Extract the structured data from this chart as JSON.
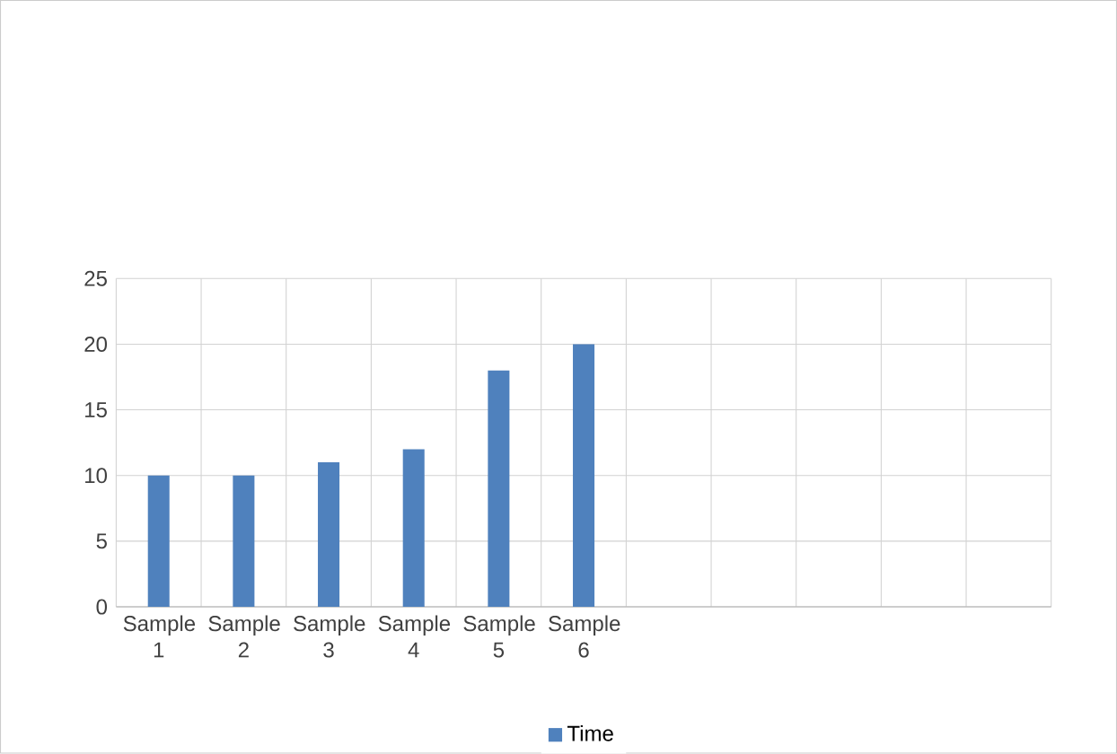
{
  "chart_data": {
    "type": "bar",
    "categories": [
      "Sample 1",
      "Sample 2",
      "Sample 3",
      "Sample 4",
      "Sample 5",
      "Sample 6",
      null,
      null,
      null,
      null,
      null
    ],
    "series": [
      {
        "name": "Time",
        "color": "#4f81bd",
        "values": [
          10,
          10,
          11,
          12,
          18,
          20,
          null,
          null,
          null,
          null,
          null
        ]
      }
    ],
    "ylim": [
      0,
      25
    ],
    "yticks": [
      0,
      5,
      10,
      15,
      20,
      25
    ],
    "grid": true,
    "legend": "bottom"
  }
}
